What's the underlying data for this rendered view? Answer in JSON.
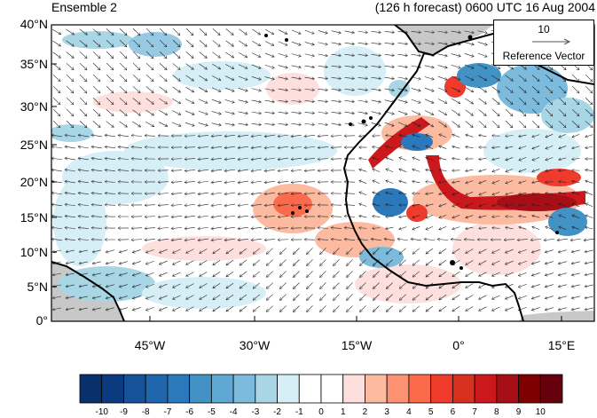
{
  "header": {
    "ensemble_label": "Ensemble 2",
    "forecast_label": "(126 h forecast) 0600 UTC 16 Aug 2004"
  },
  "axes": {
    "lat_ticks": [
      "40°N",
      "35°N",
      "30°N",
      "25°N",
      "20°N",
      "15°N",
      "10°N",
      "5°N",
      "0°"
    ],
    "lon_ticks": [
      "45°W",
      "30°W",
      "15°W",
      "0°",
      "15°E"
    ]
  },
  "reference_vector": {
    "magnitude": "10",
    "label": "Reference Vector"
  },
  "colorbar": {
    "labels": [
      "-10",
      "-9",
      "-8",
      "-7",
      "-6",
      "-5",
      "-4",
      "-3",
      "-2",
      "-1",
      "0",
      "1",
      "2",
      "3",
      "4",
      "5",
      "6",
      "7",
      "8",
      "9",
      "10"
    ],
    "colors": [
      "#08306b",
      "#0b3b7e",
      "#15529a",
      "#1f66ad",
      "#2b78bb",
      "#4292c6",
      "#5ea8d3",
      "#7dbbdc",
      "#a9d6e5",
      "#d6eef6",
      "#ffffff",
      "#ffffff",
      "#fde0dd",
      "#fcbba1",
      "#fc9272",
      "#fb6a4a",
      "#ef3b2c",
      "#d7301f",
      "#cb181d",
      "#a50f15",
      "#7f0000",
      "#67000d"
    ]
  },
  "map": {
    "land_color": "#c8c8c8",
    "positive_color": "#e34a33",
    "negative_color": "#2b78bb"
  }
}
